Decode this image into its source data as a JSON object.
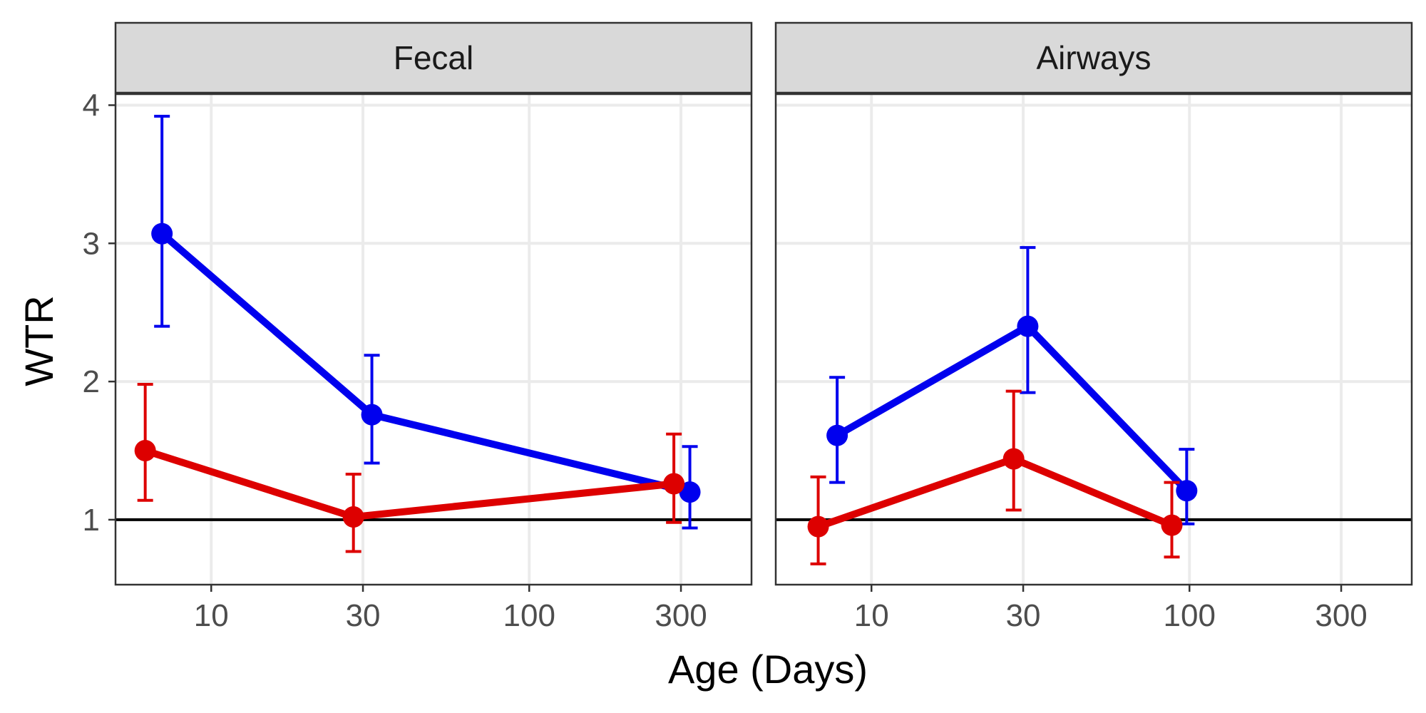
{
  "chart_data": {
    "type": "line",
    "xlabel": "Age (Days)",
    "ylabel": "WTR",
    "x_scale": "log10",
    "xlim": [
      5,
      500
    ],
    "ylim": [
      0.53,
      4.08
    ],
    "x_ticks": [
      10,
      30,
      100,
      300
    ],
    "x_tick_labels": [
      "10",
      "30",
      "100",
      "300"
    ],
    "y_ticks": [
      1,
      2,
      3,
      4
    ],
    "y_tick_labels": [
      "1",
      "2",
      "3",
      "4"
    ],
    "reference_line_y": 1,
    "grid": true,
    "legend": "none",
    "panels": [
      {
        "title": "Fecal",
        "series": [
          {
            "color": "#0000ee",
            "points": [
              {
                "x": 7,
                "y": 3.07,
                "ymin": 2.4,
                "ymax": 3.92
              },
              {
                "x": 32,
                "y": 1.76,
                "ymin": 1.41,
                "ymax": 2.19
              },
              {
                "x": 320,
                "y": 1.2,
                "ymin": 0.94,
                "ymax": 1.53
              }
            ]
          },
          {
            "color": "#dd0000",
            "points": [
              {
                "x": 6.2,
                "y": 1.5,
                "ymin": 1.14,
                "ymax": 1.98
              },
              {
                "x": 28,
                "y": 1.02,
                "ymin": 0.77,
                "ymax": 1.33
              },
              {
                "x": 285,
                "y": 1.26,
                "ymin": 0.98,
                "ymax": 1.62
              }
            ]
          }
        ]
      },
      {
        "title": "Airways",
        "series": [
          {
            "color": "#0000ee",
            "points": [
              {
                "x": 7.8,
                "y": 1.61,
                "ymin": 1.27,
                "ymax": 2.03
              },
              {
                "x": 31,
                "y": 2.4,
                "ymin": 1.92,
                "ymax": 2.97
              },
              {
                "x": 98,
                "y": 1.21,
                "ymin": 0.97,
                "ymax": 1.51
              }
            ]
          },
          {
            "color": "#dd0000",
            "points": [
              {
                "x": 6.8,
                "y": 0.95,
                "ymin": 0.68,
                "ymax": 1.31
              },
              {
                "x": 28,
                "y": 1.44,
                "ymin": 1.07,
                "ymax": 1.93
              },
              {
                "x": 88,
                "y": 0.96,
                "ymin": 0.73,
                "ymax": 1.27
              }
            ]
          }
        ]
      }
    ]
  }
}
